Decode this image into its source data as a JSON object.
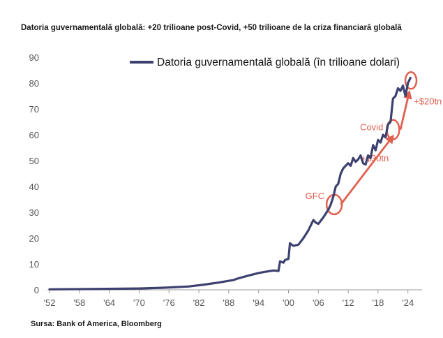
{
  "title": "Datoria guvernamentală globală: +20 trilioane post-Covid, +50 trilioane de la criza financiară globală",
  "source": "Sursa: Bank of America, Bloomberg",
  "colors": {
    "line": "#3d4170",
    "accent": "#e0604f",
    "axis": "#999999"
  },
  "chart_data": {
    "type": "line",
    "title": "Datoria guvernamentală globală: +20 trilioane post-Covid, +50 trilioane de la criza financiară globală",
    "legend": "Datoria guvernamentală globală (în trilioane dolari)",
    "legend_position": "top-right",
    "xlabel": "",
    "ylabel": "",
    "xlim": [
      1952,
      2026
    ],
    "ylim": [
      0,
      90
    ],
    "grid": false,
    "y_ticks": [
      0,
      10,
      20,
      30,
      40,
      50,
      60,
      70,
      80,
      90
    ],
    "x_ticks": [
      1952,
      1958,
      1964,
      1970,
      1976,
      1982,
      1988,
      1994,
      2000,
      2006,
      2012,
      2018,
      2024
    ],
    "x_tick_labels": [
      "'52",
      "'58",
      "'64",
      "'70",
      "'76",
      "'82",
      "'88",
      "'94",
      "'00",
      "'06",
      "'12",
      "'18",
      "'24"
    ],
    "series": [
      {
        "name": "Datoria guvernamentală globală (în trilioane dolari)",
        "x": [
          1952,
          1960,
          1970,
          1975,
          1980,
          1983,
          1986,
          1989,
          1990,
          1992,
          1994,
          1996,
          1997,
          1998,
          1998.3,
          1999,
          1999.3,
          2000,
          2000.3,
          2001,
          2002,
          2003,
          2004,
          2005,
          2005.5,
          2006,
          2007,
          2008,
          2008.5,
          2009,
          2009.5,
          2010,
          2010.5,
          2011,
          2011.5,
          2012,
          2012.5,
          2013,
          2013.5,
          2014,
          2014.5,
          2015,
          2015.5,
          2016,
          2016.5,
          2017,
          2017.5,
          2018,
          2018.5,
          2019,
          2019.5,
          2020,
          2020.5,
          2021,
          2021.5,
          2022,
          2022.5,
          2023,
          2023.5,
          2024,
          2024.5
        ],
        "values": [
          0.2,
          0.3,
          0.5,
          0.8,
          1.3,
          2.0,
          2.8,
          3.8,
          4.5,
          5.5,
          6.5,
          7.2,
          7.5,
          7.3,
          11.0,
          10.5,
          11.5,
          12.0,
          18.0,
          17.0,
          17.5,
          20.0,
          23.0,
          27.0,
          26.0,
          25.5,
          28.0,
          31.0,
          33.0,
          36.0,
          40.0,
          41.0,
          45.0,
          47.0,
          48.0,
          49.0,
          48.0,
          51.0,
          49.5,
          50.5,
          52.0,
          49.0,
          48.5,
          52.0,
          51.0,
          56.0,
          54.0,
          58.0,
          57.0,
          60.0,
          59.0,
          64.0,
          65.0,
          74.0,
          75.0,
          78.0,
          77.0,
          79.0,
          75.0,
          80.0,
          82.0
        ]
      }
    ],
    "annotations": [
      {
        "text": "GFC",
        "x": 2009.2,
        "y": 33,
        "type": "circle"
      },
      {
        "text": "Covid",
        "x": 2021,
        "y": 62,
        "type": "circle"
      },
      {
        "text": "",
        "x": 2024.6,
        "y": 81,
        "type": "circle"
      },
      {
        "text": "+$30tn",
        "type": "arrow",
        "from": [
          2010.5,
          33
        ],
        "to": [
          2020.8,
          59
        ]
      },
      {
        "text": "+$20tn",
        "type": "arrow",
        "from": [
          2022.5,
          62
        ],
        "to": [
          2024.2,
          76
        ]
      }
    ]
  }
}
